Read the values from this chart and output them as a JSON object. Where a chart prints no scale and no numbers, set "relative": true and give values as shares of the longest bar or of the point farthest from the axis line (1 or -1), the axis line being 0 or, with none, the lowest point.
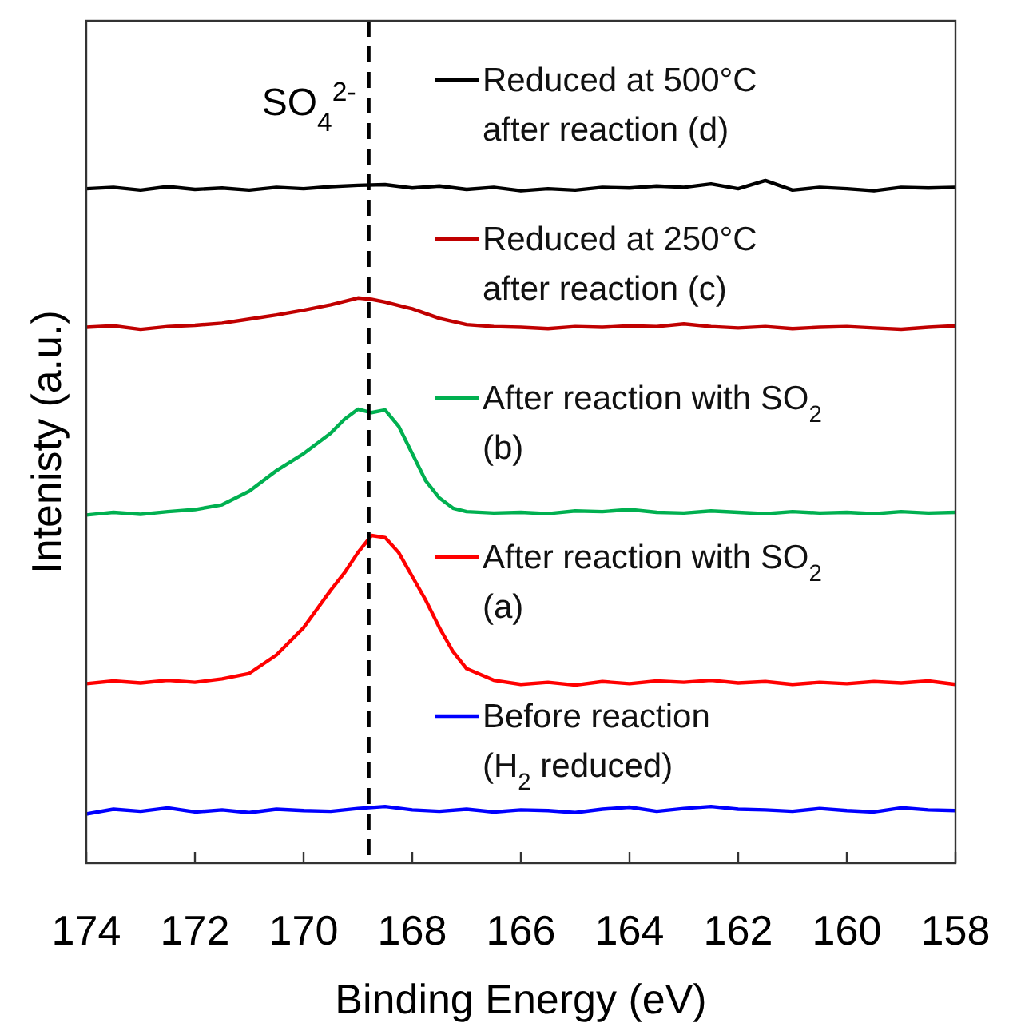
{
  "chart_data": {
    "type": "line",
    "relative": true,
    "xlabel": "Binding Energy (eV)",
    "ylabel": "Intenisty (a.u.)",
    "xlim": [
      174,
      158
    ],
    "xticks": [
      174,
      172,
      170,
      168,
      166,
      164,
      162,
      160,
      158
    ],
    "legend": "right",
    "line_style": "solid",
    "ref_lines": [
      {
        "axis": "x",
        "value": 168.8,
        "label": "SO$_{4}$$^{2-}$",
        "color": "#000000",
        "line_style": "dashed"
      }
    ],
    "series": [
      {
        "name": "Reduced at 500°C\nafter reaction (d)",
        "color": "#000000",
        "x": [
          174,
          173.5,
          173,
          172.5,
          172,
          171.5,
          171,
          170.5,
          170,
          169.5,
          169,
          168.5,
          168,
          167.5,
          167,
          166.5,
          166,
          165.5,
          165,
          164.5,
          164,
          163.5,
          163,
          162.5,
          162,
          161.5,
          161,
          160.5,
          160,
          159.5,
          159,
          158.5,
          158
        ],
        "values": [
          0.988,
          0.99,
          0.986,
          0.991,
          0.987,
          0.989,
          0.986,
          0.99,
          0.988,
          0.991,
          0.993,
          0.994,
          0.989,
          0.992,
          0.987,
          0.99,
          0.985,
          0.988,
          0.986,
          0.99,
          0.989,
          0.992,
          0.99,
          0.995,
          0.988,
          1.0,
          0.986,
          0.99,
          0.988,
          0.985,
          0.99,
          0.989,
          0.99
        ]
      },
      {
        "name": "Reduced at 250°C\nafter reaction (c)",
        "color": "#c00000",
        "x": [
          174,
          173.5,
          173,
          172.5,
          172,
          171.5,
          171,
          170.5,
          170,
          169.5,
          169,
          168.75,
          168.5,
          168,
          167.5,
          167,
          166.5,
          166,
          165.5,
          165,
          164.5,
          164,
          163.5,
          163,
          162.5,
          162,
          161.5,
          161,
          160.5,
          160,
          159.5,
          159,
          158.5,
          158
        ],
        "values": [
          0.785,
          0.787,
          0.782,
          0.786,
          0.788,
          0.791,
          0.797,
          0.803,
          0.81,
          0.818,
          0.828,
          0.826,
          0.822,
          0.812,
          0.798,
          0.789,
          0.786,
          0.785,
          0.783,
          0.786,
          0.785,
          0.787,
          0.786,
          0.79,
          0.786,
          0.784,
          0.786,
          0.783,
          0.785,
          0.786,
          0.784,
          0.782,
          0.785,
          0.787
        ]
      },
      {
        "name": "After reaction with SO$_{2}$\n(b)",
        "color": "#00b050",
        "x": [
          174,
          173.5,
          173,
          172.5,
          172,
          171.5,
          171,
          170.5,
          170,
          169.5,
          169.25,
          169,
          168.75,
          168.5,
          168.25,
          168,
          167.75,
          167.5,
          167.25,
          167,
          166.5,
          166,
          165.5,
          165,
          164.5,
          164,
          163.5,
          163,
          162.5,
          162,
          161.5,
          161,
          160.5,
          160,
          159.5,
          159,
          158.5,
          158
        ],
        "values": [
          0.51,
          0.514,
          0.511,
          0.515,
          0.518,
          0.525,
          0.545,
          0.575,
          0.6,
          0.63,
          0.65,
          0.665,
          0.66,
          0.664,
          0.64,
          0.6,
          0.56,
          0.535,
          0.52,
          0.515,
          0.513,
          0.514,
          0.512,
          0.516,
          0.515,
          0.518,
          0.514,
          0.513,
          0.516,
          0.514,
          0.512,
          0.515,
          0.513,
          0.514,
          0.512,
          0.515,
          0.513,
          0.514
        ]
      },
      {
        "name": "After reaction with SO$_{2}$\n(a)",
        "color": "#ff0000",
        "x": [
          174,
          173.5,
          173,
          172.5,
          172,
          171.5,
          171,
          170.5,
          170,
          169.5,
          169.25,
          169,
          168.75,
          168.5,
          168.25,
          168,
          167.75,
          167.5,
          167.25,
          167,
          166.5,
          166,
          165.5,
          165,
          164.5,
          164,
          163.5,
          163,
          162.5,
          162,
          161.5,
          161,
          160.5,
          160,
          159.5,
          159,
          158.5,
          158
        ],
        "values": [
          0.263,
          0.267,
          0.264,
          0.268,
          0.265,
          0.27,
          0.278,
          0.305,
          0.345,
          0.4,
          0.425,
          0.455,
          0.48,
          0.477,
          0.455,
          0.42,
          0.385,
          0.345,
          0.31,
          0.285,
          0.268,
          0.262,
          0.265,
          0.261,
          0.266,
          0.263,
          0.267,
          0.265,
          0.268,
          0.264,
          0.266,
          0.262,
          0.265,
          0.263,
          0.266,
          0.264,
          0.267,
          0.262
        ]
      },
      {
        "name": "Before reaction\n(H$_{2}$ reduced)",
        "color": "#0000ff",
        "x": [
          174,
          173.5,
          173,
          172.5,
          172,
          171.5,
          171,
          170.5,
          170,
          169.5,
          169,
          168.5,
          168,
          167.5,
          167,
          166.5,
          166,
          165.5,
          165,
          164.5,
          164,
          163.5,
          163,
          162.5,
          162,
          161.5,
          161,
          160.5,
          160,
          159.5,
          159,
          158.5,
          158
        ],
        "values": [
          0.072,
          0.079,
          0.076,
          0.081,
          0.075,
          0.078,
          0.074,
          0.079,
          0.077,
          0.076,
          0.08,
          0.083,
          0.078,
          0.076,
          0.079,
          0.075,
          0.078,
          0.077,
          0.074,
          0.079,
          0.082,
          0.076,
          0.08,
          0.083,
          0.079,
          0.078,
          0.076,
          0.08,
          0.077,
          0.075,
          0.081,
          0.078,
          0.077
        ]
      }
    ]
  }
}
